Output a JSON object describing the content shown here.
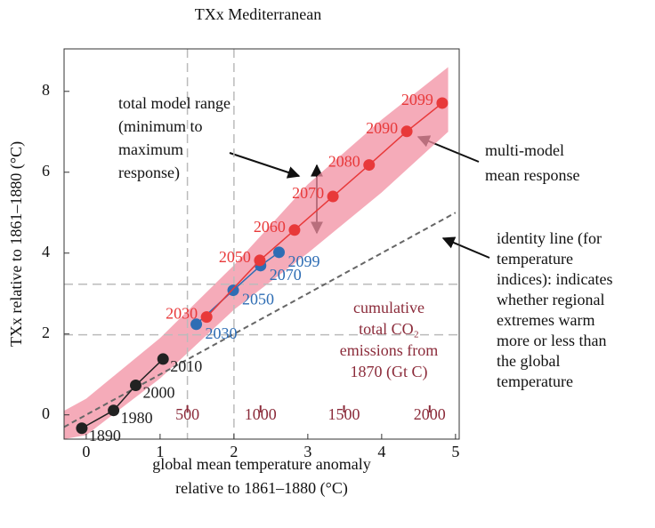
{
  "chart_data": {
    "type": "scatter",
    "title": "TXx Mediterranean",
    "x_label": [
      "global mean temperature anomaly",
      "relative to 1861–1880 (°C)"
    ],
    "y_label": "TXx relative to 1861–1880 (°C)",
    "xlim": [
      -0.3,
      5.05
    ],
    "ylim": [
      -0.6,
      9.05
    ],
    "xticks": [
      0,
      1,
      2,
      3,
      4,
      5
    ],
    "yticks": [
      0,
      2,
      4,
      6,
      8
    ],
    "series": [
      {
        "color": "#222222",
        "x": [
          -0.06,
          0.37,
          0.67,
          1.04
        ],
        "values": [
          -0.33,
          0.11,
          0.73,
          1.38
        ],
        "labels": [
          "1890",
          "1980",
          "2000",
          "2010"
        ]
      },
      {
        "color": "#2e6db4",
        "x": [
          1.49,
          1.99,
          2.36,
          2.61
        ],
        "values": [
          2.24,
          3.08,
          3.69,
          4.02
        ],
        "labels": [
          "2030",
          "2050",
          "2070",
          "2099"
        ]
      },
      {
        "color": "#e8393a",
        "x": [
          1.63,
          2.35,
          2.82,
          3.34,
          3.83,
          4.34,
          4.82
        ],
        "values": [
          2.42,
          3.82,
          4.57,
          5.4,
          6.18,
          7.01,
          7.71
        ],
        "labels": [
          "2030",
          "2050",
          "2060",
          "2070",
          "2080",
          "2090",
          "2099"
        ]
      }
    ],
    "model_range": {
      "color": "#f28fa2",
      "x": [
        -0.3,
        0,
        1,
        2,
        3,
        4,
        4.9
      ],
      "upper": [
        0.1,
        0.4,
        1.9,
        3.7,
        5.7,
        7.3,
        8.6
      ],
      "lower": [
        -0.6,
        -0.5,
        0.9,
        2.6,
        4.0,
        5.5,
        7.0
      ]
    },
    "identity_line": {
      "x": [
        -0.3,
        5
      ],
      "values": [
        -0.3,
        5
      ]
    },
    "reference_x": [
      1.37,
      2
    ],
    "reference_y": [
      1.98,
      3.23
    ],
    "co2_ticks": [
      500,
      1000,
      1500,
      2000
    ],
    "co2_tick_x": [
      1.37,
      2.36,
      3.49,
      4.65
    ],
    "co2_title": [
      "cumulative",
      "total CO₂",
      "emissions from",
      "1870 (Gt C)"
    ],
    "range_note": [
      "total model range",
      "(minimum to",
      "maximum",
      "response)"
    ],
    "mean_note": [
      "multi-model",
      "mean response"
    ],
    "identity_note": [
      "identity line (for",
      "temperature",
      "indices): indicates",
      "whether regional",
      "extremes warm",
      "more or less than",
      "the global",
      "temperature"
    ]
  }
}
